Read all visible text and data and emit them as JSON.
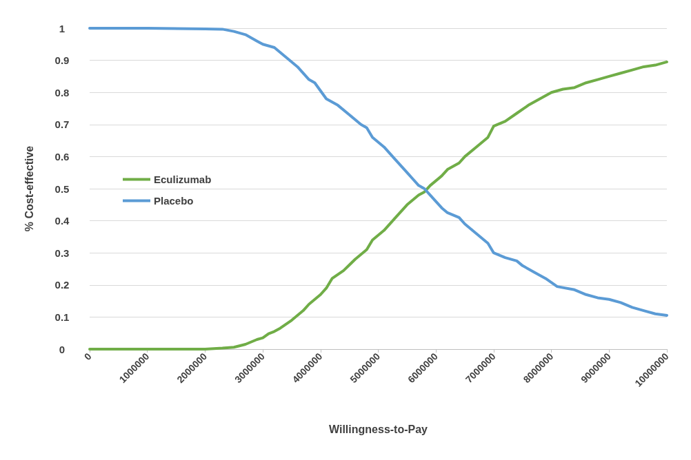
{
  "chart_data": {
    "type": "line",
    "xlabel": "Willingness-to-Pay",
    "ylabel": "% Cost-effective",
    "xlim": [
      0,
      10000000
    ],
    "xticks": [
      0,
      1000000,
      2000000,
      3000000,
      4000000,
      5000000,
      6000000,
      7000000,
      8000000,
      9000000,
      10000000
    ],
    "ylim": [
      0,
      1
    ],
    "yticks": [
      0,
      0.1,
      0.2,
      0.3,
      0.4,
      0.5,
      0.6,
      0.7,
      0.8,
      0.9,
      1
    ],
    "grid": "y",
    "legend": "left",
    "marker": "none",
    "line_style": "solid",
    "series": [
      {
        "name": "Eculizumab",
        "color": "#70ad47",
        "x": [
          0,
          1000000,
          2000000,
          2300000,
          2500000,
          2700000,
          2900000,
          3000000,
          3100000,
          3200000,
          3300000,
          3500000,
          3700000,
          3800000,
          4000000,
          4100000,
          4200000,
          4400000,
          4600000,
          4800000,
          4900000,
          5100000,
          5300000,
          5500000,
          5700000,
          5800000,
          5900000,
          6100000,
          6200000,
          6400000,
          6500000,
          6700000,
          6900000,
          7000000,
          7200000,
          7400000,
          7600000,
          7800000,
          8000000,
          8200000,
          8400000,
          8600000,
          8800000,
          9000000,
          9200000,
          9400000,
          9600000,
          9800000,
          10000000
        ],
        "values": [
          0,
          0,
          0,
          0.003,
          0.006,
          0.015,
          0.03,
          0.035,
          0.048,
          0.055,
          0.065,
          0.09,
          0.12,
          0.14,
          0.17,
          0.19,
          0.22,
          0.245,
          0.28,
          0.31,
          0.34,
          0.37,
          0.41,
          0.45,
          0.48,
          0.49,
          0.51,
          0.54,
          0.56,
          0.58,
          0.6,
          0.63,
          0.66,
          0.695,
          0.71,
          0.735,
          0.76,
          0.78,
          0.8,
          0.81,
          0.815,
          0.83,
          0.84,
          0.85,
          0.86,
          0.87,
          0.88,
          0.885,
          0.895
        ]
      },
      {
        "name": "Placebo",
        "color": "#5b9bd5",
        "x": [
          0,
          1000000,
          2000000,
          2300000,
          2500000,
          2700000,
          2900000,
          3000000,
          3200000,
          3400000,
          3600000,
          3800000,
          3900000,
          4100000,
          4300000,
          4500000,
          4700000,
          4800000,
          4900000,
          5100000,
          5300000,
          5500000,
          5600000,
          5700000,
          5800000,
          5900000,
          6100000,
          6200000,
          6400000,
          6500000,
          6700000,
          6900000,
          7000000,
          7200000,
          7400000,
          7500000,
          7700000,
          7900000,
          8100000,
          8400000,
          8600000,
          8800000,
          9000000,
          9200000,
          9400000,
          9600000,
          9800000,
          10000000
        ],
        "values": [
          1,
          1,
          0.998,
          0.997,
          0.99,
          0.98,
          0.96,
          0.95,
          0.94,
          0.91,
          0.88,
          0.84,
          0.83,
          0.78,
          0.76,
          0.73,
          0.7,
          0.69,
          0.66,
          0.63,
          0.59,
          0.55,
          0.53,
          0.51,
          0.5,
          0.48,
          0.44,
          0.425,
          0.41,
          0.39,
          0.36,
          0.33,
          0.3,
          0.285,
          0.275,
          0.26,
          0.24,
          0.22,
          0.195,
          0.185,
          0.17,
          0.16,
          0.155,
          0.145,
          0.13,
          0.12,
          0.11,
          0.105
        ]
      }
    ]
  }
}
